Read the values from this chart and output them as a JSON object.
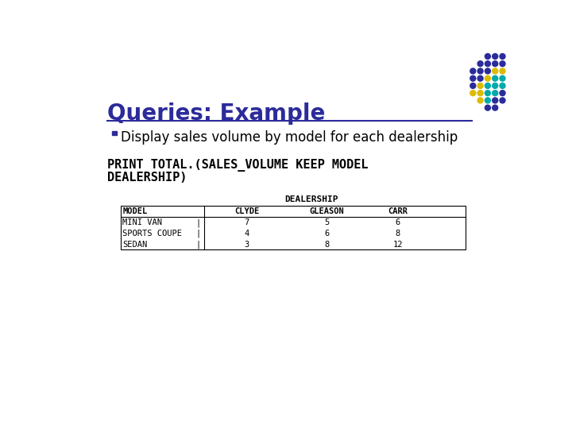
{
  "title": "Queries: Example",
  "title_color": "#2B2B9B",
  "title_fontsize": 20,
  "bullet_text": "Display sales volume by model for each dealership",
  "bullet_color": "#000000",
  "bullet_fontsize": 12,
  "code_text_line1": "PRINT TOTAL.(SALES_VOLUME KEEP MODEL",
  "code_text_line2": "DEALERSHIP)",
  "code_fontsize": 11,
  "table_header_label": "DEALERSHIP",
  "table_columns": [
    "MODEL",
    "CLYDE",
    "GLEASON",
    "CARR"
  ],
  "table_rows": [
    [
      "MINI VAN",
      "7",
      "5",
      "6"
    ],
    [
      "SPORTS COUPE",
      "4",
      "6",
      "8"
    ],
    [
      "SEDAN",
      "3",
      "8",
      "12"
    ]
  ],
  "bg_color": "#FFFFFF",
  "underline_color": "#2B2B9B",
  "dot_grid_colors": [
    [
      "#2B2B9B",
      "#2B2B9B",
      "#2B2B9B"
    ],
    [
      "#2B2B9B",
      "#2B2B9B",
      "#2B2B9B"
    ],
    [
      "#2B2B9B",
      "#2B2B9B",
      "#DDBB00"
    ],
    [
      "#2B2B9B",
      "#DDBB00",
      "#00AAAA"
    ],
    [
      "#DDBB00",
      "#00AAAA",
      "#00AAAA"
    ],
    [
      "#00AAAA",
      "#00AAAA",
      "#2B2B9B"
    ],
    [
      "#00AAAA",
      "#2B2B9B",
      "#2B2B9B"
    ]
  ],
  "dot_grid_colors_full": [
    [
      "#2B2B9B",
      "#2B2B9B",
      "#2B2B9B",
      "#2B2B9B",
      "#2B2B9B"
    ],
    [
      "#2B2B9B",
      "#2B2B9B",
      "#2B2B9B",
      "#2B2B9B",
      "#2B2B9B"
    ],
    [
      "#2B2B9B",
      "#2B2B9B",
      "#2B2B9B",
      "#DDBB00",
      "#DDBB00"
    ],
    [
      "#2B2B9B",
      "#2B2B9B",
      "#DDBB00",
      "#00AAAA",
      "#00AAAA"
    ],
    [
      "#2B2B9B",
      "#DDBB00",
      "#00AAAA",
      "#00AAAA",
      "#2B2B9B"
    ],
    [
      "#DDBB00",
      "#00AAAA",
      "#00AAAA",
      "#2B2B9B",
      "#2B2B9B"
    ],
    [
      "#00AAAA",
      "#2B2B9B",
      "#2B2B9B",
      "#00AAAA",
      "#2B2B9B"
    ]
  ]
}
